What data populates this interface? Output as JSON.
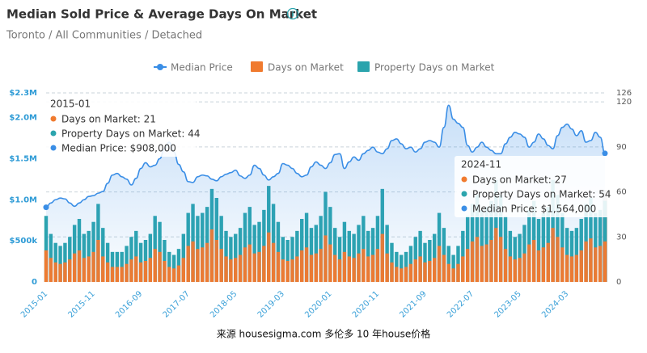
{
  "chart_data": {
    "type": "bar_line",
    "title": "Median Sold Price & Average Days On Market",
    "subtitle": "Toronto / All Communities / Detached",
    "source": "来源 housesigma.com 多伦多 10 年house价格",
    "categories": [
      "2015-01",
      null,
      null,
      null,
      null,
      null,
      null,
      null,
      null,
      null,
      "2015-11",
      null,
      null,
      null,
      null,
      null,
      null,
      null,
      null,
      null,
      "2016-09",
      null,
      null,
      null,
      null,
      null,
      null,
      null,
      null,
      null,
      "2017-07",
      null,
      null,
      null,
      null,
      null,
      null,
      null,
      null,
      null,
      "2018-05",
      null,
      null,
      null,
      null,
      null,
      null,
      null,
      null,
      null,
      "2019-03",
      null,
      null,
      null,
      null,
      null,
      null,
      null,
      null,
      null,
      "2020-01",
      null,
      null,
      null,
      null,
      null,
      null,
      null,
      null,
      null,
      "2020-11",
      null,
      null,
      null,
      null,
      null,
      null,
      null,
      null,
      null,
      "2021-09",
      null,
      null,
      null,
      null,
      null,
      null,
      null,
      null,
      null,
      "2022-07",
      null,
      null,
      null,
      null,
      null,
      null,
      null,
      null,
      null,
      "2023-05",
      null,
      null,
      null,
      null,
      null,
      null,
      null,
      null,
      null,
      "2024-03",
      null,
      null,
      null,
      null,
      null,
      null,
      null,
      null
    ],
    "series": [
      {
        "name": "Median Price",
        "kind": "line",
        "axis": "y",
        "color": "#3a8ee6",
        "values": [
          908000,
          960000,
          1000000,
          1020000,
          1010000,
          960000,
          920000,
          960000,
          1000000,
          1040000,
          1050000,
          1080000,
          1100000,
          1200000,
          1300000,
          1320000,
          1280000,
          1250000,
          1180000,
          1260000,
          1380000,
          1450000,
          1400000,
          1420000,
          1500000,
          1620000,
          1700000,
          1580000,
          1430000,
          1340000,
          1220000,
          1210000,
          1280000,
          1300000,
          1290000,
          1250000,
          1230000,
          1280000,
          1310000,
          1330000,
          1360000,
          1290000,
          1260000,
          1300000,
          1420000,
          1380000,
          1300000,
          1240000,
          1280000,
          1320000,
          1440000,
          1420000,
          1380000,
          1320000,
          1280000,
          1300000,
          1400000,
          1460000,
          1420000,
          1380000,
          1450000,
          1550000,
          1560000,
          1380000,
          1460000,
          1520000,
          1480000,
          1560000,
          1600000,
          1640000,
          1580000,
          1560000,
          1620000,
          1720000,
          1740000,
          1680000,
          1620000,
          1640000,
          1580000,
          1620000,
          1700000,
          1720000,
          1700000,
          1640000,
          1880000,
          2150000,
          1980000,
          1930000,
          1880000,
          1660000,
          1580000,
          1640000,
          1700000,
          1640000,
          1600000,
          1560000,
          1560000,
          1680000,
          1760000,
          1820000,
          1800000,
          1760000,
          1640000,
          1700000,
          1800000,
          1740000,
          1660000,
          1620000,
          1780000,
          1880000,
          1920000,
          1860000,
          1780000,
          1840000,
          1700000,
          1720000,
          1820000,
          1760000,
          1564000
        ]
      },
      {
        "name": "Days on Market",
        "kind": "bar",
        "axis": "y2",
        "color": "#f07a2e",
        "values": [
          21,
          16,
          13,
          12,
          13,
          15,
          19,
          21,
          16,
          17,
          20,
          28,
          17,
          13,
          10,
          10,
          10,
          12,
          15,
          17,
          13,
          14,
          16,
          22,
          20,
          14,
          10,
          9,
          11,
          16,
          24,
          27,
          22,
          23,
          26,
          35,
          28,
          22,
          17,
          15,
          16,
          18,
          23,
          25,
          19,
          20,
          24,
          33,
          26,
          20,
          15,
          14,
          15,
          17,
          21,
          23,
          18,
          19,
          22,
          31,
          25,
          18,
          15,
          20,
          17,
          16,
          19,
          22,
          17,
          18,
          22,
          32,
          19,
          13,
          10,
          9,
          10,
          12,
          15,
          17,
          13,
          14,
          16,
          24,
          18,
          12,
          9,
          12,
          17,
          22,
          27,
          30,
          24,
          25,
          28,
          36,
          30,
          22,
          17,
          15,
          16,
          19,
          25,
          28,
          21,
          23,
          26,
          36,
          30,
          23,
          18,
          17,
          18,
          21,
          27,
          29,
          23,
          24,
          27
        ]
      },
      {
        "name": "Property Days on Market",
        "kind": "bar",
        "axis": "y2",
        "color": "#2ba4ad",
        "values": [
          44,
          32,
          26,
          24,
          26,
          30,
          38,
          42,
          32,
          34,
          40,
          52,
          36,
          26,
          20,
          20,
          20,
          24,
          30,
          34,
          26,
          28,
          32,
          44,
          40,
          28,
          20,
          18,
          22,
          32,
          46,
          52,
          44,
          46,
          50,
          62,
          56,
          44,
          34,
          30,
          32,
          36,
          46,
          50,
          38,
          40,
          48,
          64,
          52,
          40,
          30,
          28,
          30,
          34,
          42,
          46,
          36,
          38,
          44,
          60,
          50,
          36,
          30,
          40,
          34,
          32,
          38,
          44,
          34,
          36,
          44,
          62,
          38,
          26,
          20,
          18,
          20,
          24,
          30,
          34,
          26,
          28,
          32,
          46,
          36,
          24,
          18,
          24,
          34,
          44,
          52,
          58,
          48,
          50,
          54,
          68,
          58,
          44,
          34,
          30,
          32,
          38,
          48,
          54,
          42,
          46,
          50,
          68,
          58,
          46,
          36,
          34,
          36,
          42,
          52,
          56,
          46,
          48,
          54
        ]
      }
    ],
    "ylim": [
      0,
      2300000
    ],
    "yticks": [
      0,
      {
        "value": 500000,
        "label": "$500k"
      },
      {
        "value": 1000000,
        "label": "$1.0M"
      },
      {
        "value": 1500000,
        "label": "$1.5M"
      },
      {
        "value": 2000000,
        "label": "$2.0M"
      },
      {
        "value": 2300000,
        "label": "$2.3M"
      }
    ],
    "y2lim": [
      0,
      126
    ],
    "y2ticks": [
      0,
      30,
      60,
      90,
      120,
      126
    ],
    "grid": true,
    "legend": "top",
    "tooltips": [
      {
        "title": "2015-01",
        "items": [
          {
            "text": "Days on Market: 21",
            "color": "#f07a2e"
          },
          {
            "text": "Property Days on Market: 44",
            "color": "#2ba4ad"
          },
          {
            "text": "Median Price: $908,000",
            "color": "#3a8ee6"
          }
        ]
      },
      {
        "title": "2024-11",
        "items": [
          {
            "text": "Days on Market: 27",
            "color": "#f07a2e"
          },
          {
            "text": "Property Days on Market: 54",
            "color": "#2ba4ad"
          },
          {
            "text": "Median Price: $1,564,000",
            "color": "#3a8ee6"
          }
        ]
      }
    ]
  }
}
